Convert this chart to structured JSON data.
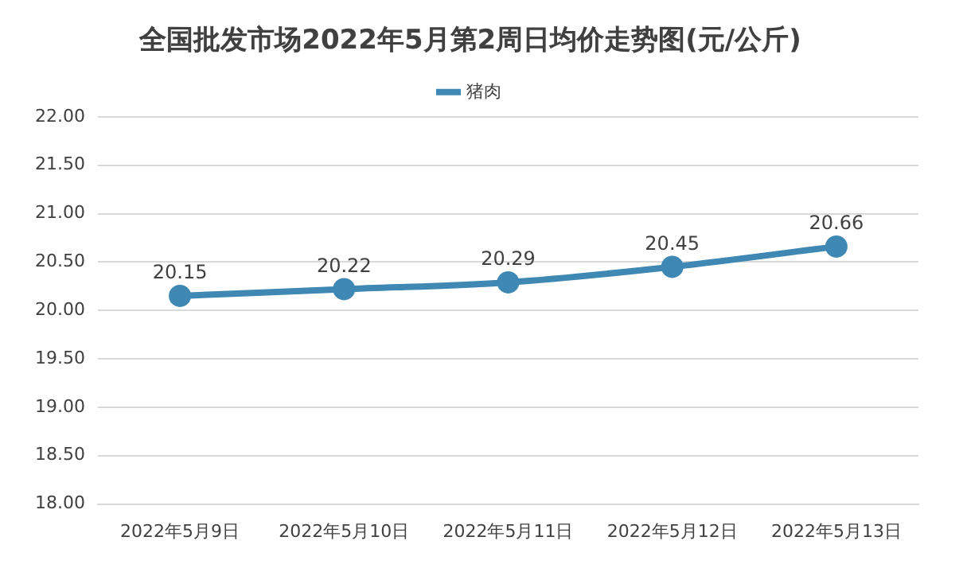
{
  "chart_data": {
    "type": "line",
    "title": "全国批发市场2022年5月第2周日均价走势图(元/公斤)",
    "categories": [
      "2022年5月9日",
      "2022年5月10日",
      "2022年5月11日",
      "2022年5月12日",
      "2022年5月13日"
    ],
    "series": [
      {
        "name": "猪肉",
        "color": "#3e88b3",
        "values": [
          20.15,
          20.22,
          20.29,
          20.45,
          20.66
        ]
      }
    ],
    "ylim": [
      18,
      22
    ],
    "yticks": [
      {
        "value": 18,
        "label": "18.00"
      },
      {
        "value": 18.5,
        "label": "18.50"
      },
      {
        "value": 19,
        "label": "19.00"
      },
      {
        "value": 19.5,
        "label": "19.50"
      },
      {
        "value": 20,
        "label": "20.00"
      },
      {
        "value": 20.5,
        "label": "20.50"
      },
      {
        "value": 21,
        "label": "21.00"
      },
      {
        "value": 21.5,
        "label": "21.50"
      },
      {
        "value": 22,
        "label": "22.00"
      }
    ],
    "grid": "y",
    "legend": "top",
    "marker": "circle",
    "line_style": "solid",
    "data_labels": true
  }
}
